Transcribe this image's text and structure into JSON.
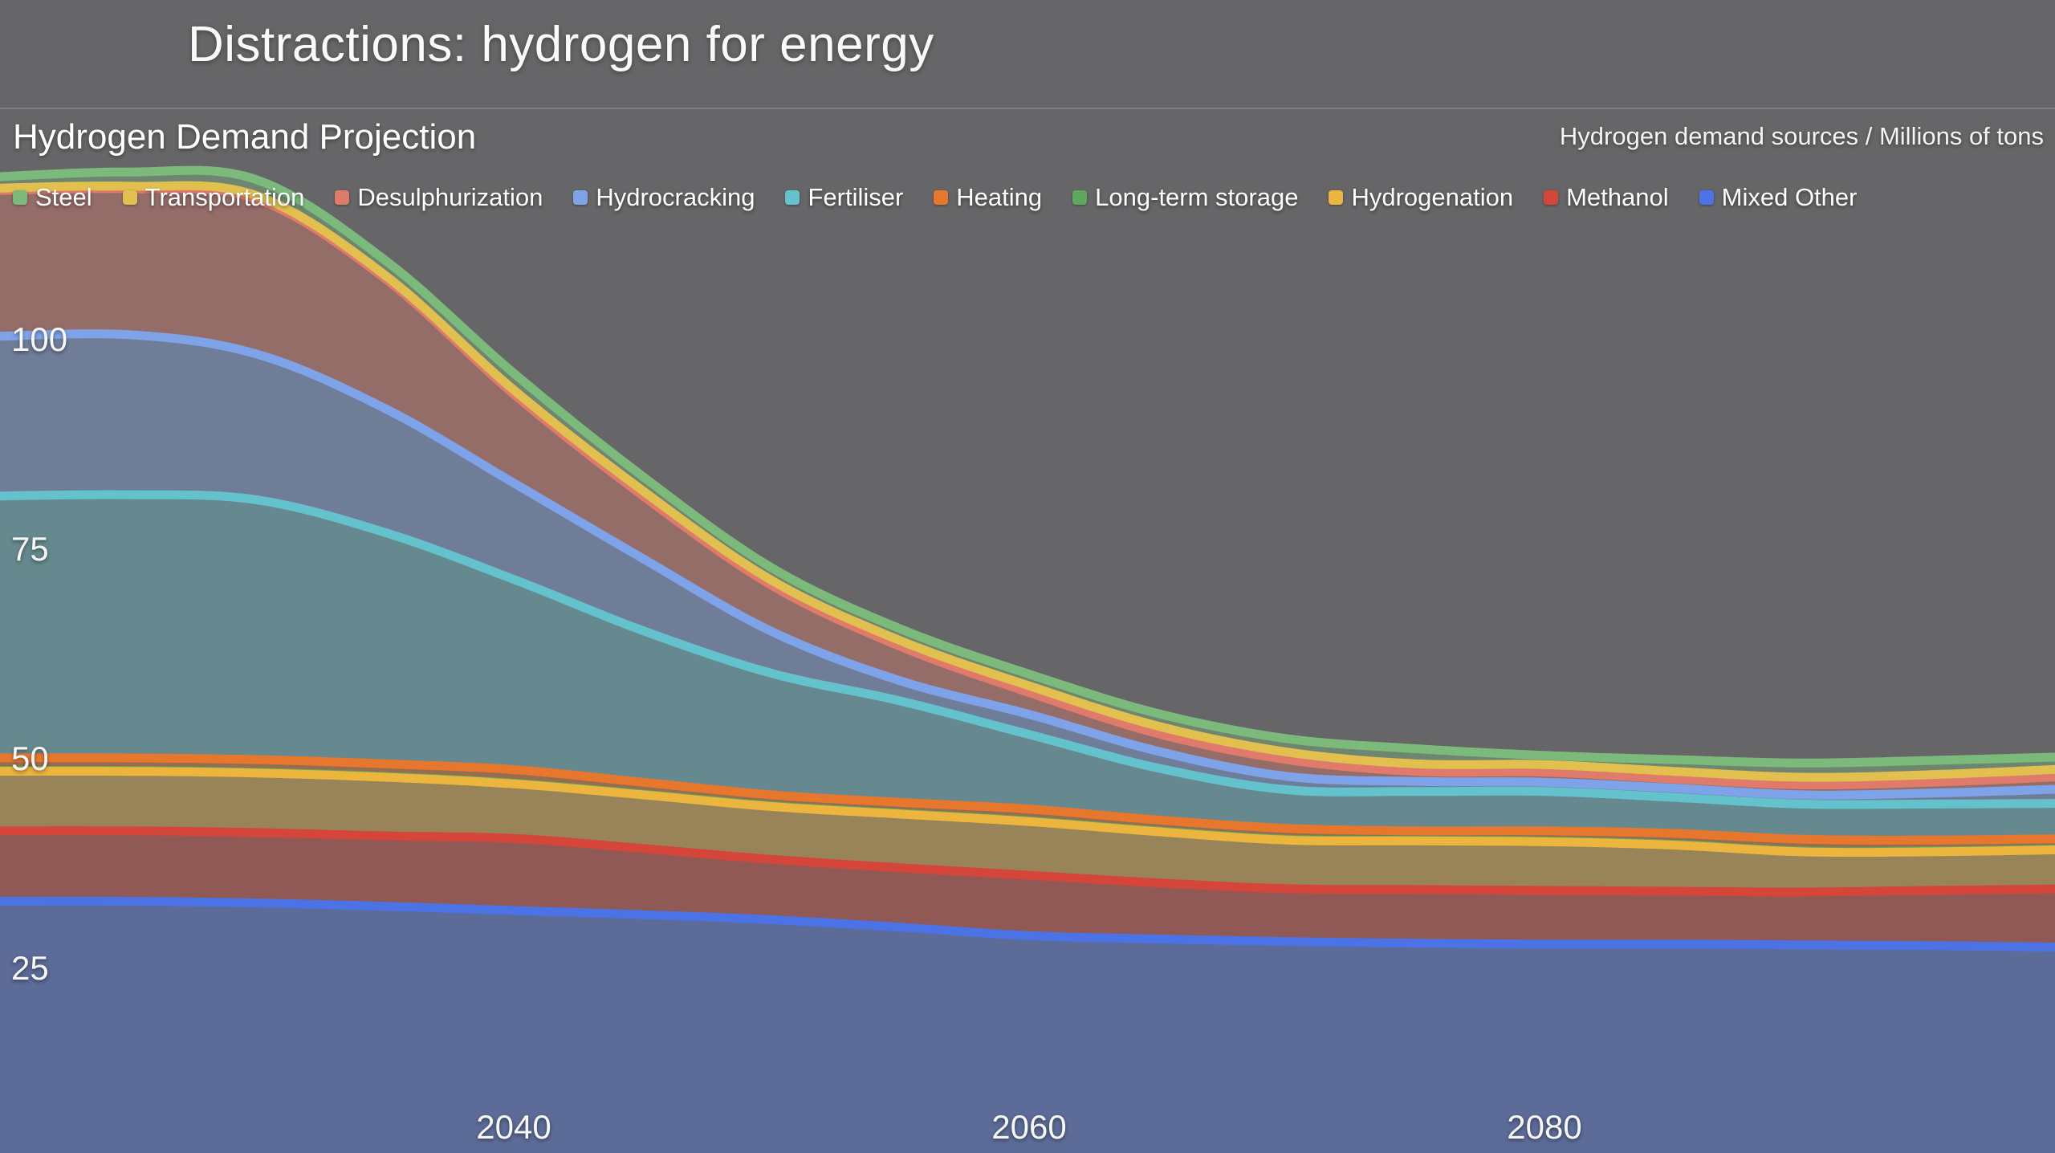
{
  "slide": {
    "title": "Distractions: hydrogen for energy"
  },
  "chart": {
    "subtitle": "Hydrogen Demand Projection",
    "units_label": "Hydrogen demand sources / Millions of tons"
  },
  "legend": {
    "items": [
      "Steel",
      "Transportation",
      "Desulphurization",
      "Hydrocracking",
      "Fertiliser",
      "Heating",
      "Long-term storage",
      "Hydrogenation",
      "Methanol",
      "Mixed Other"
    ]
  },
  "colors": {
    "background": "#666668",
    "divider": "#7E7E80",
    "text": "#FFFFFF"
  },
  "chart_data": {
    "type": "area",
    "stacked": true,
    "title": "Hydrogen Demand Projection",
    "ylabel": "Hydrogen demand sources / Millions of tons",
    "xlabel": "",
    "grid": false,
    "legend_position": "top",
    "x": [
      2020,
      2025,
      2030,
      2035,
      2040,
      2045,
      2050,
      2055,
      2060,
      2065,
      2070,
      2075,
      2080,
      2085,
      2090,
      2095,
      2100
    ],
    "x_visible_range": [
      2020,
      2100
    ],
    "y_visible_range": [
      0,
      122
    ],
    "yticks": [
      25,
      50,
      75,
      100
    ],
    "xticks": [
      2040,
      2060,
      2080
    ],
    "fill_alpha": 0.38,
    "series": [
      {
        "name": "Mixed Other",
        "color": "#4B73E6",
        "values": [
          33.0,
          33.0,
          32.8,
          32.4,
          31.9,
          31.4,
          30.8,
          29.9,
          28.9,
          28.5,
          28.2,
          28.0,
          27.9,
          27.9,
          27.8,
          27.7,
          27.5
        ]
      },
      {
        "name": "Methanol",
        "color": "#D6453A",
        "values": [
          8.4,
          8.4,
          8.4,
          8.4,
          8.6,
          7.9,
          7.2,
          7.1,
          7.2,
          6.7,
          6.3,
          6.4,
          6.4,
          6.3,
          6.3,
          6.6,
          7.0
        ]
      },
      {
        "name": "Hydrogenation",
        "color": "#EBB53E",
        "values": [
          7.1,
          7.1,
          7.1,
          7.0,
          6.5,
          6.4,
          6.3,
          6.4,
          6.4,
          6.1,
          5.8,
          5.8,
          5.8,
          5.5,
          4.8,
          4.6,
          4.7
        ]
      },
      {
        "name": "Long-term storage",
        "color": "#5CA85C",
        "values": [
          0.1,
          0.1,
          0.1,
          0.1,
          0.1,
          0.1,
          0.1,
          0.1,
          0.1,
          0.1,
          0.1,
          0.1,
          0.1,
          0.1,
          0.1,
          0.1,
          0.1
        ]
      },
      {
        "name": "Heating",
        "color": "#E8772E",
        "values": [
          1.5,
          1.5,
          1.5,
          1.5,
          1.6,
          1.4,
          1.3,
          1.3,
          1.4,
          1.3,
          1.3,
          1.1,
          1.2,
          1.3,
          1.4,
          1.3,
          1.2
        ]
      },
      {
        "name": "Fertiliser",
        "color": "#63C2CC",
        "values": [
          31.2,
          31.4,
          31.0,
          27.6,
          22.7,
          18.1,
          14.5,
          12.1,
          8.9,
          6.2,
          4.6,
          4.7,
          4.7,
          4.3,
          4.2,
          4.3,
          4.2
        ]
      },
      {
        "name": "Hydrocracking",
        "color": "#7FA3E8",
        "values": [
          19.0,
          19.1,
          17.4,
          14.8,
          11.5,
          8.6,
          5.0,
          2.4,
          2.4,
          2.0,
          1.6,
          1.2,
          1.1,
          1.1,
          1.1,
          1.3,
          1.8
        ]
      },
      {
        "name": "Desulphurization",
        "color": "#E07A6B",
        "values": [
          17.4,
          17.4,
          18.5,
          15.5,
          10.6,
          7.5,
          5.5,
          4.1,
          2.6,
          2.1,
          2.0,
          1.2,
          1.2,
          1.1,
          1.2,
          1.3,
          1.5
        ]
      },
      {
        "name": "Transportation",
        "color": "#E2C04F",
        "values": [
          0.3,
          0.3,
          0.4,
          0.4,
          0.5,
          0.6,
          0.6,
          0.7,
          0.8,
          0.9,
          0.9,
          0.9,
          0.9,
          0.9,
          0.9,
          0.9,
          0.9
        ]
      },
      {
        "name": "Steel",
        "color": "#7CBA7C",
        "values": [
          1.3,
          1.7,
          1.9,
          1.8,
          2.0,
          1.7,
          1.5,
          1.4,
          1.4,
          1.5,
          1.6,
          1.8,
          1.1,
          1.4,
          1.7,
          1.7,
          1.4
        ]
      }
    ]
  }
}
